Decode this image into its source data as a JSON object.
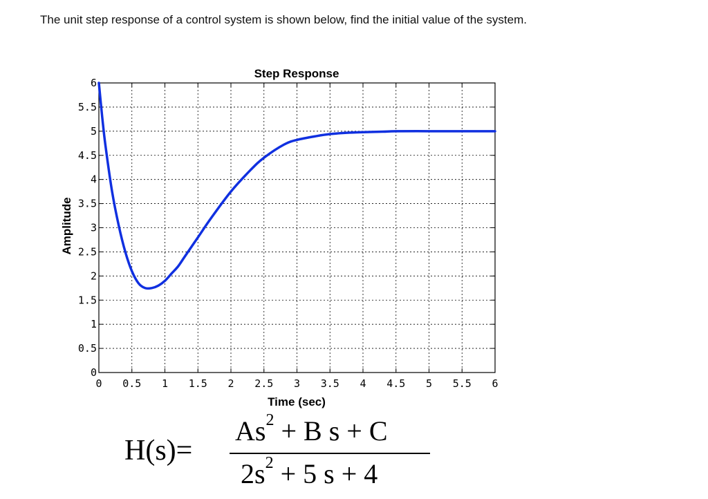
{
  "question": "The unit step response of a control system is shown below, find the initial value of the system.",
  "chart_data": {
    "type": "line",
    "title": "Step Response",
    "xlabel": "Time (sec)",
    "ylabel": "Amplitude",
    "xlim": [
      0,
      6
    ],
    "ylim": [
      0,
      6
    ],
    "grid": true,
    "line_color": "#1030e0",
    "x_ticks": [
      "0",
      "0.5",
      "1",
      "1.5",
      "2",
      "2.5",
      "3",
      "3.5",
      "4",
      "4.5",
      "5",
      "5.5",
      "6"
    ],
    "y_ticks": [
      "0",
      "0.5",
      "1",
      "1.5",
      "2",
      "2.5",
      "3",
      "3.5",
      "4",
      "4.5",
      "5",
      "5.5",
      "6"
    ],
    "series": [
      {
        "x": [
          0,
          0.05,
          0.1,
          0.2,
          0.3,
          0.4,
          0.5,
          0.6,
          0.7,
          0.8,
          0.9,
          1.0,
          1.1,
          1.2,
          1.3,
          1.5,
          1.7,
          2.0,
          2.3,
          2.5,
          2.8,
          3.0,
          3.3,
          3.5,
          3.8,
          4.0,
          4.3,
          4.5,
          5.0,
          5.5,
          6.0
        ],
        "y": [
          6.0,
          5.3,
          4.7,
          3.75,
          3.05,
          2.5,
          2.1,
          1.85,
          1.75,
          1.75,
          1.8,
          1.9,
          2.05,
          2.2,
          2.4,
          2.8,
          3.2,
          3.75,
          4.2,
          4.45,
          4.72,
          4.82,
          4.9,
          4.94,
          4.97,
          4.98,
          4.99,
          5.0,
          5.0,
          5.0,
          5.0
        ]
      }
    ]
  },
  "formula": {
    "lhs": "H(s)=",
    "num_a": "As",
    "num_rest": " + B s + C",
    "den_a": "2s",
    "den_rest": " +  5 s + 4",
    "exp": "2"
  }
}
